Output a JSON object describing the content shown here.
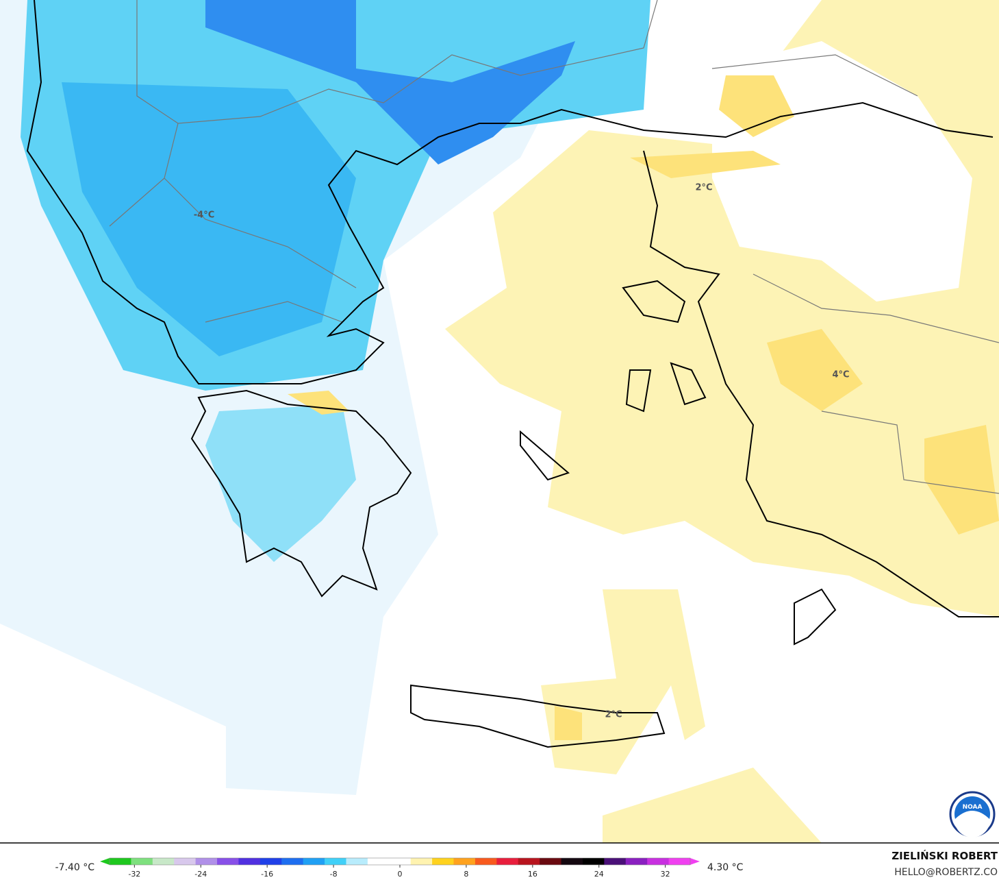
{
  "map": {
    "contour_labels": [
      "-4°C",
      "2°C",
      "4°C",
      "2°C"
    ],
    "logo": "NOAA"
  },
  "colorbar": {
    "lim": [
      -35,
      35
    ],
    "ticks": [
      -32,
      -24,
      -16,
      -8,
      0,
      8,
      16,
      24,
      32
    ],
    "colors": [
      "#1ec81e",
      "#7ee07e",
      "#c8e8c8",
      "#d8c8ec",
      "#b090e8",
      "#8850e8",
      "#5030e0",
      "#2040e8",
      "#1e6ef0",
      "#20a0f4",
      "#40d0f8",
      "#b8ecfc",
      "#ffffff",
      "#ffffff",
      "#fff3b0",
      "#ffd21e",
      "#ffa21e",
      "#f85a1e",
      "#e81e3c",
      "#b8141e",
      "#6a0a10",
      "#140810",
      "#000000",
      "#4a1078",
      "#8a20c0",
      "#c830e0",
      "#f040f0"
    ],
    "min_label": "-7.40 °C",
    "max_label": "4.30 °C"
  },
  "credit": {
    "name": "ZIELIŃSKI ROBERT",
    "email": "HELLO@ROBERTZ.CO"
  }
}
